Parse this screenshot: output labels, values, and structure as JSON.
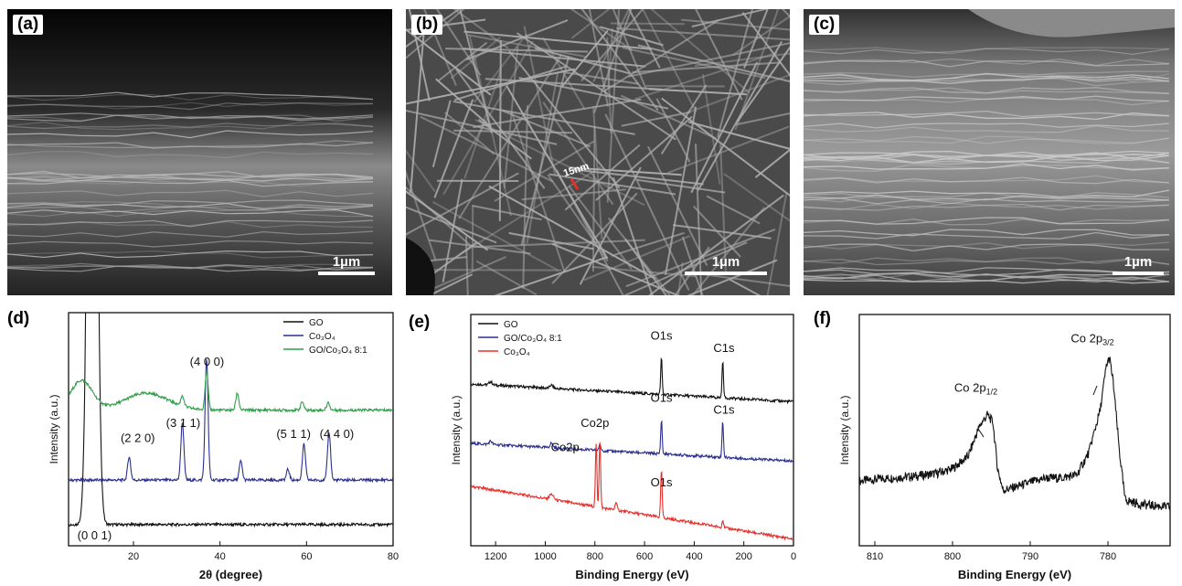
{
  "sem_panels": [
    {
      "label": "(a)",
      "scale_bar": "1µm"
    },
    {
      "label": "(b)",
      "scale_bar": "1µm",
      "annotation": "15nm"
    },
    {
      "label": "(c)",
      "scale_bar": "1µm"
    }
  ],
  "colors": {
    "black": "#111111",
    "blue": "#2b2f8f",
    "green": "#2e9e48",
    "red": "#e8302b"
  },
  "chart_data": [
    {
      "panel_label": "(d)",
      "type": "line",
      "xlabel": "2θ (degree)",
      "ylabel": "Intensity (a.u.)",
      "xlim": [
        5,
        80
      ],
      "xticks": [
        20,
        40,
        60,
        80
      ],
      "legend": {
        "placement": "top-right",
        "entries": [
          "GO",
          "Co₃O₄",
          "GO/Co₃O₄ 8:1"
        ]
      },
      "series": [
        {
          "name": "GO",
          "color": "#111111",
          "baseline": 0.2,
          "peaks": [
            [
              10.5,
              9.0,
              0.9
            ]
          ]
        },
        {
          "name": "Co₃O₄",
          "color": "#2b2f8f",
          "baseline": 0.62,
          "peaks": [
            [
              19.0,
              0.22,
              0.35
            ],
            [
              31.3,
              0.55,
              0.35
            ],
            [
              36.9,
              1.15,
              0.35
            ],
            [
              44.8,
              0.18,
              0.35
            ],
            [
              55.7,
              0.1,
              0.35
            ],
            [
              59.4,
              0.34,
              0.35
            ],
            [
              65.2,
              0.45,
              0.35
            ]
          ]
        },
        {
          "name": "GO/Co₃O₄ 8:1",
          "color": "#2e9e48",
          "baseline": 1.28,
          "peaks": [
            [
              8.0,
              0.28,
              2.5
            ],
            [
              23.0,
              0.16,
              5.0
            ],
            [
              31.3,
              0.1,
              0.35
            ],
            [
              36.9,
              0.36,
              0.35
            ],
            [
              44.0,
              0.16,
              0.35
            ],
            [
              59.0,
              0.08,
              0.35
            ],
            [
              65.0,
              0.07,
              0.35
            ]
          ]
        }
      ],
      "annotations": [
        {
          "text": "(4 0 0)",
          "x": 37,
          "y": 1.7
        },
        {
          "text": "(2 2 0)",
          "x": 21,
          "y": 0.98
        },
        {
          "text": "(3 1 1)",
          "x": 31.5,
          "y": 1.12
        },
        {
          "text": "(5 1 1)",
          "x": 57,
          "y": 1.02
        },
        {
          "text": "(4 4 0)",
          "x": 67,
          "y": 1.02
        },
        {
          "text": "(0 0 1)",
          "x": 11,
          "y": 0.06
        }
      ],
      "ylim": [
        0,
        2.2
      ]
    },
    {
      "panel_label": "(e)",
      "type": "line",
      "xlabel": "Binding Energy (eV)",
      "ylabel": "Intensity (a.u.)",
      "xlim": [
        1300,
        0
      ],
      "xticks": [
        1200,
        1000,
        800,
        600,
        400,
        200,
        0
      ],
      "legend": {
        "placement": "top-left",
        "entries": [
          "GO",
          "GO/Co₃O₄ 8:1",
          "Co₃O₄"
        ]
      },
      "series": [
        {
          "name": "GO",
          "color": "#111111",
          "start": [
            1300,
            2.45
          ],
          "end": [
            0,
            2.18
          ],
          "peaks": [
            [
              1220,
              0.05,
              6
            ],
            [
              975,
              0.05,
              6
            ],
            [
              532,
              0.55,
              3
            ],
            [
              285,
              0.55,
              3
            ]
          ]
        },
        {
          "name": "GO/Co₃O₄ 8:1",
          "color": "#2b2f8f",
          "start": [
            1300,
            1.55
          ],
          "end": [
            0,
            1.28
          ],
          "peaks": [
            [
              1220,
              0.05,
              6
            ],
            [
              975,
              0.07,
              6
            ],
            [
              780,
              0.08,
              4
            ],
            [
              532,
              0.52,
              3
            ],
            [
              285,
              0.55,
              3
            ]
          ]
        },
        {
          "name": "Co₃O₄",
          "color": "#e8302b",
          "start": [
            1300,
            0.9
          ],
          "end": [
            0,
            0.1
          ],
          "peaks": [
            [
              975,
              0.08,
              8
            ],
            [
              795,
              0.95,
              3
            ],
            [
              780,
              1.0,
              3
            ],
            [
              715,
              0.12,
              4
            ],
            [
              532,
              0.72,
              3
            ],
            [
              285,
              0.12,
              3
            ]
          ]
        }
      ],
      "annotations": [
        {
          "text": "O1s",
          "x": 532,
          "y": 3.12
        },
        {
          "text": "C1s",
          "x": 280,
          "y": 2.93
        },
        {
          "text": "O1s",
          "x": 532,
          "y": 2.18
        },
        {
          "text": "C1s",
          "x": 280,
          "y": 2.0
        },
        {
          "text": "Co2p",
          "x": 800,
          "y": 1.8
        },
        {
          "text": "Co2p",
          "x": 920,
          "y": 1.43
        },
        {
          "text": "O1s",
          "x": 532,
          "y": 0.9
        }
      ],
      "ylim": [
        0,
        3.5
      ]
    },
    {
      "panel_label": "(f)",
      "type": "line",
      "xlabel": "Binding Energy (eV)",
      "ylabel": "Intensity (a.u.)",
      "xlim": [
        812,
        772
      ],
      "xticks": [
        810,
        800,
        790,
        780
      ],
      "series": [
        {
          "name": "Co 2p",
          "color": "#111111",
          "points": [
            [
              812,
              0.42
            ],
            [
              808,
              0.44
            ],
            [
              805,
              0.45
            ],
            [
              802,
              0.47
            ],
            [
              800,
              0.5
            ],
            [
              798,
              0.58
            ],
            [
              796.5,
              0.78
            ],
            [
              795.5,
              0.85
            ],
            [
              794.8,
              0.8
            ],
            [
              794.2,
              0.5
            ],
            [
              793.5,
              0.36
            ],
            [
              792,
              0.38
            ],
            [
              790,
              0.41
            ],
            [
              788,
              0.44
            ],
            [
              786,
              0.44
            ],
            [
              784,
              0.46
            ],
            [
              782.5,
              0.6
            ],
            [
              781,
              0.88
            ],
            [
              780.2,
              1.17
            ],
            [
              779.8,
              1.22
            ],
            [
              779.3,
              1.05
            ],
            [
              778.5,
              0.6
            ],
            [
              777.8,
              0.3
            ],
            [
              776,
              0.27
            ],
            [
              774,
              0.26
            ],
            [
              772,
              0.25
            ]
          ]
        }
      ],
      "annotations": [
        {
          "text": "Co 2p1/2",
          "x": 797,
          "y": 1.0
        },
        {
          "text": "Co 2p3/2",
          "x": 782,
          "y": 1.32
        }
      ],
      "ylim": [
        0,
        1.5
      ]
    }
  ]
}
